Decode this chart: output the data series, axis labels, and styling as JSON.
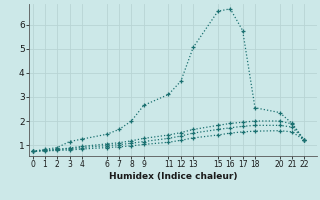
{
  "title": "",
  "xlabel": "Humidex (Indice chaleur)",
  "bg_color": "#cce8e8",
  "grid_color": "#b8d4d4",
  "line_color": "#1a7070",
  "xticks": [
    0,
    1,
    2,
    3,
    4,
    6,
    7,
    8,
    9,
    11,
    12,
    13,
    15,
    16,
    17,
    18,
    20,
    21,
    22
  ],
  "yticks": [
    1,
    2,
    3,
    4,
    5,
    6
  ],
  "xlim": [
    -0.3,
    23.0
  ],
  "ylim": [
    0.55,
    6.85
  ],
  "lines": [
    {
      "x": [
        0,
        1,
        2,
        3,
        4,
        6,
        7,
        8,
        9,
        11,
        12,
        13,
        15,
        16,
        17,
        18,
        20,
        21,
        22
      ],
      "y": [
        0.75,
        0.82,
        0.9,
        1.15,
        1.25,
        1.45,
        1.65,
        2.0,
        2.65,
        3.1,
        3.65,
        5.05,
        6.55,
        6.65,
        5.75,
        2.55,
        2.35,
        1.9,
        1.2
      ]
    },
    {
      "x": [
        0,
        1,
        2,
        3,
        4,
        6,
        7,
        8,
        9,
        11,
        12,
        13,
        15,
        16,
        17,
        18,
        20,
        21,
        22
      ],
      "y": [
        0.75,
        0.78,
        0.82,
        0.88,
        0.95,
        1.05,
        1.1,
        1.18,
        1.28,
        1.42,
        1.52,
        1.65,
        1.82,
        1.9,
        1.95,
        2.0,
        2.0,
        1.88,
        1.2
      ]
    },
    {
      "x": [
        0,
        1,
        2,
        3,
        4,
        6,
        7,
        8,
        9,
        11,
        12,
        13,
        15,
        16,
        17,
        18,
        20,
        21,
        22
      ],
      "y": [
        0.75,
        0.78,
        0.82,
        0.85,
        0.9,
        0.98,
        1.02,
        1.08,
        1.15,
        1.28,
        1.38,
        1.5,
        1.65,
        1.72,
        1.78,
        1.82,
        1.82,
        1.75,
        1.2
      ]
    },
    {
      "x": [
        0,
        1,
        2,
        3,
        4,
        6,
        7,
        8,
        9,
        11,
        12,
        13,
        15,
        16,
        17,
        18,
        20,
        21,
        22
      ],
      "y": [
        0.75,
        0.76,
        0.78,
        0.8,
        0.84,
        0.9,
        0.93,
        0.97,
        1.03,
        1.12,
        1.2,
        1.3,
        1.42,
        1.5,
        1.55,
        1.58,
        1.6,
        1.55,
        1.2
      ]
    }
  ]
}
